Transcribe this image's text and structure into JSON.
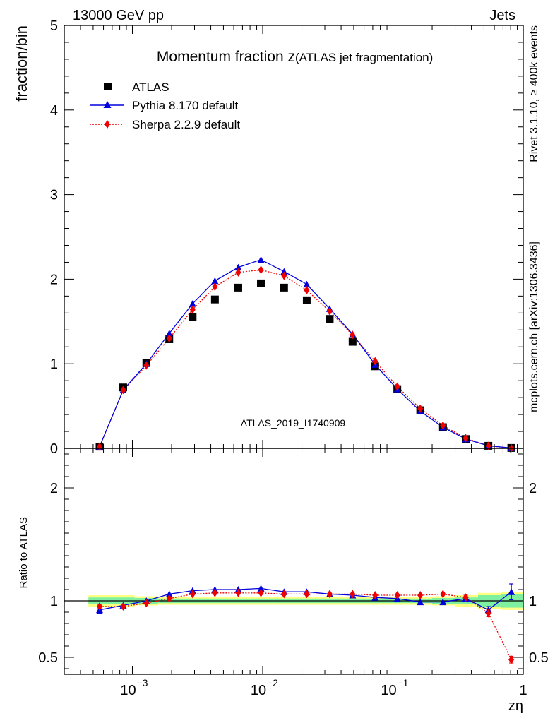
{
  "header": {
    "beam_label": "13000 GeV pp",
    "process_label": "Jets"
  },
  "side_labels": {
    "rivet": "Rivet 3.1.10, ≥ 400k events",
    "mcplots": "mcplots.cern.ch [arXiv:1306.3436]"
  },
  "chart_data": [
    {
      "type": "scatter",
      "title": "Momentum fraction z",
      "title_suffix": "(ATLAS jet fragmentation)",
      "ylabel": "fraction/bin",
      "xlabel": "",
      "watermark": "ATLAS_2019_I1740909",
      "x_scale": "log",
      "xlim": [
        0.0003,
        1
      ],
      "ylim": [
        0,
        5
      ],
      "y_ticks": [
        0,
        1,
        2,
        3,
        4,
        5
      ],
      "y_tick_labels": [
        "0",
        "1",
        "2",
        "3",
        "4",
        "5"
      ],
      "legend_position": "top-left",
      "colors": {
        "data": "#000000",
        "pythia": "#0000dd",
        "sherpa": "#ee0000"
      },
      "x": [
        0.00056,
        0.00085,
        0.00128,
        0.00192,
        0.0029,
        0.0043,
        0.0065,
        0.0097,
        0.0146,
        0.0218,
        0.0327,
        0.049,
        0.073,
        0.108,
        0.162,
        0.242,
        0.362,
        0.54,
        0.81
      ],
      "series": [
        {
          "name": "ATLAS",
          "style": "markers",
          "values": [
            0.02,
            0.72,
            1.01,
            1.29,
            1.55,
            1.76,
            1.9,
            1.95,
            1.9,
            1.75,
            1.53,
            1.26,
            0.97,
            0.7,
            0.45,
            0.25,
            0.11,
            0.03,
            0.005
          ]
        },
        {
          "name": "Pythia 8.170 default",
          "style": "line-triangle",
          "values": [
            0.02,
            0.69,
            1.0,
            1.36,
            1.71,
            1.98,
            2.14,
            2.23,
            2.09,
            1.94,
            1.65,
            1.35,
            0.99,
            0.7,
            0.44,
            0.25,
            0.11,
            0.03,
            0.005
          ]
        },
        {
          "name": "Sherpa 2.2.9 default",
          "style": "dotted-diamond",
          "values": [
            0.02,
            0.69,
            0.98,
            1.3,
            1.64,
            1.91,
            2.08,
            2.11,
            2.04,
            1.87,
            1.62,
            1.34,
            1.03,
            0.73,
            0.47,
            0.27,
            0.12,
            0.03,
            0.002
          ]
        }
      ]
    },
    {
      "type": "scatter",
      "ylabel": "Ratio to ATLAS",
      "xlabel": "zη",
      "x_scale": "log",
      "xlim": [
        0.0003,
        1
      ],
      "ylim": [
        0.35,
        2.35
      ],
      "y_ticks": [
        0.5,
        1,
        2
      ],
      "y_tick_labels": [
        "0.5",
        "1",
        "2"
      ],
      "x_tick_labels": [
        "10",
        "10",
        "10",
        "1"
      ],
      "x_tick_exponents": [
        "−3",
        "−2",
        "−1",
        ""
      ],
      "band_colors": {
        "inner": "#7ff0a0",
        "outer": "#ffff80"
      },
      "uncertainty_band": {
        "edges": [
          0.00046,
          0.0007,
          0.00104,
          0.00157,
          0.00236,
          0.0035,
          0.0053,
          0.008,
          0.0121,
          0.018,
          0.027,
          0.04,
          0.06,
          0.09,
          0.135,
          0.2,
          0.3,
          0.45,
          0.67,
          1.0
        ],
        "inner": [
          0.03,
          0.03,
          0.025,
          0.02,
          0.02,
          0.02,
          0.02,
          0.02,
          0.02,
          0.02,
          0.02,
          0.02,
          0.02,
          0.02,
          0.02,
          0.025,
          0.03,
          0.05,
          0.06
        ],
        "outer": [
          0.05,
          0.05,
          0.04,
          0.035,
          0.035,
          0.035,
          0.035,
          0.035,
          0.035,
          0.035,
          0.035,
          0.035,
          0.035,
          0.035,
          0.035,
          0.04,
          0.05,
          0.07,
          0.08
        ]
      },
      "x": [
        0.00056,
        0.00085,
        0.00128,
        0.00192,
        0.0029,
        0.0043,
        0.0065,
        0.0097,
        0.0146,
        0.0218,
        0.0327,
        0.049,
        0.073,
        0.108,
        0.162,
        0.242,
        0.362,
        0.54,
        0.81
      ],
      "series": [
        {
          "name": "Pythia 8.170 default",
          "style": "line-triangle",
          "values": [
            0.92,
            0.96,
            1.0,
            1.06,
            1.09,
            1.1,
            1.1,
            1.11,
            1.08,
            1.08,
            1.06,
            1.05,
            1.03,
            1.02,
            0.99,
            0.99,
            1.02,
            0.92,
            1.08
          ],
          "errors": [
            0.03,
            0.01,
            0.01,
            0.01,
            0.01,
            0.01,
            0.01,
            0.01,
            0.01,
            0.01,
            0.01,
            0.01,
            0.01,
            0.01,
            0.01,
            0.01,
            0.02,
            0.03,
            0.07
          ]
        },
        {
          "name": "Sherpa 2.2.9 default",
          "style": "dotted-diamond",
          "values": [
            0.95,
            0.95,
            0.98,
            1.02,
            1.06,
            1.07,
            1.07,
            1.07,
            1.06,
            1.06,
            1.06,
            1.06,
            1.05,
            1.05,
            1.05,
            1.06,
            1.03,
            0.89,
            0.48
          ],
          "errors": [
            0.02,
            0.01,
            0.01,
            0.01,
            0.01,
            0.01,
            0.01,
            0.01,
            0.01,
            0.01,
            0.01,
            0.01,
            0.01,
            0.01,
            0.01,
            0.01,
            0.02,
            0.03,
            0.03
          ]
        }
      ]
    }
  ]
}
